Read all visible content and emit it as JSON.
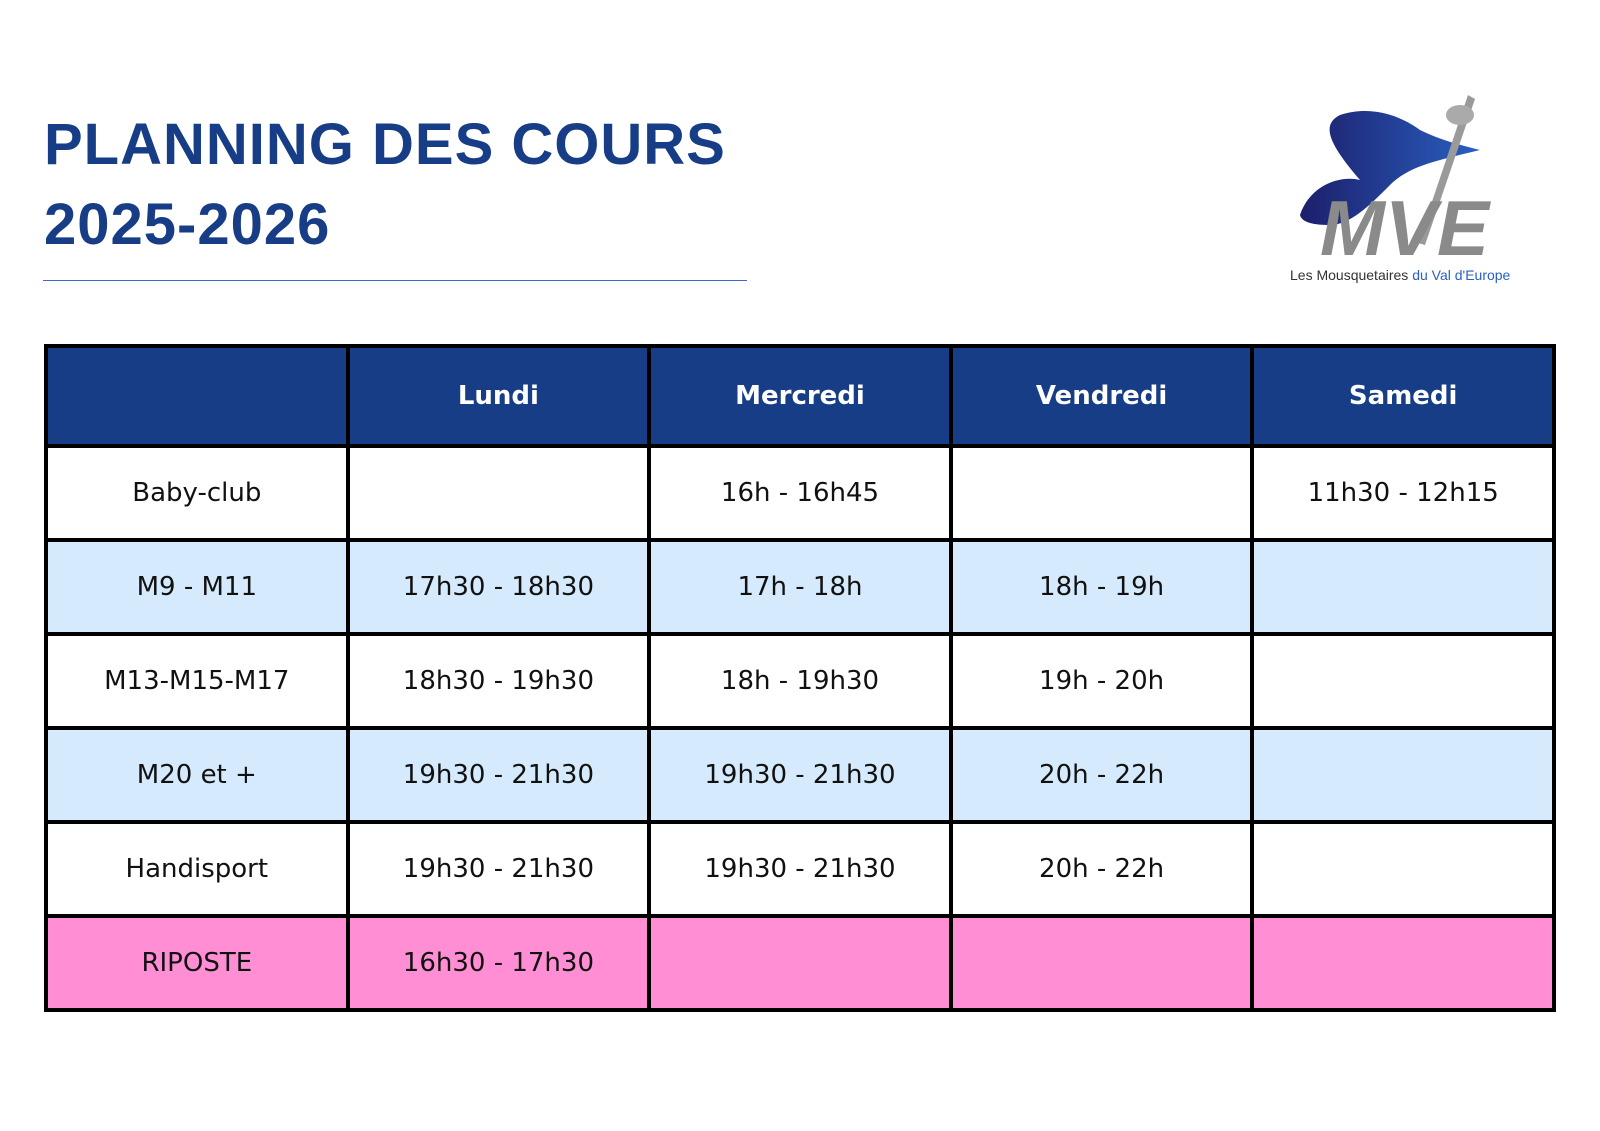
{
  "header": {
    "title": [
      "PLANNING DES COURS",
      "2025-2026"
    ]
  },
  "logo": {
    "letters": "MVE",
    "tagline": [
      "Les Mousquetaires",
      "du Val d'Europe"
    ]
  },
  "table": {
    "columns": [
      "Lundi",
      "Mercredi",
      "Vendredi",
      "Samedi"
    ],
    "rows": [
      {
        "label": "Baby-club",
        "cells": [
          null,
          "16h - 16h45",
          null,
          "11h30 - 12h15"
        ]
      },
      {
        "label": "M9 - M11",
        "cells": [
          "17h30 - 18h30",
          "17h - 18h",
          "18h - 19h",
          null
        ]
      },
      {
        "label": "M13-M15-M17",
        "cells": [
          "18h30 - 19h30",
          "18h - 19h30",
          "19h - 20h",
          null
        ]
      },
      {
        "label": "M20 et +",
        "cells": [
          "19h30 - 21h30",
          "19h30 - 21h30",
          "20h - 22h",
          null
        ]
      },
      {
        "label": "Handisport",
        "cells": [
          "19h30 - 21h30",
          "19h30 - 21h30",
          "20h - 22h",
          null
        ]
      },
      {
        "label": "RIPOSTE",
        "cells": [
          "16h30 - 17h30",
          null,
          null,
          null
        ]
      }
    ]
  }
}
